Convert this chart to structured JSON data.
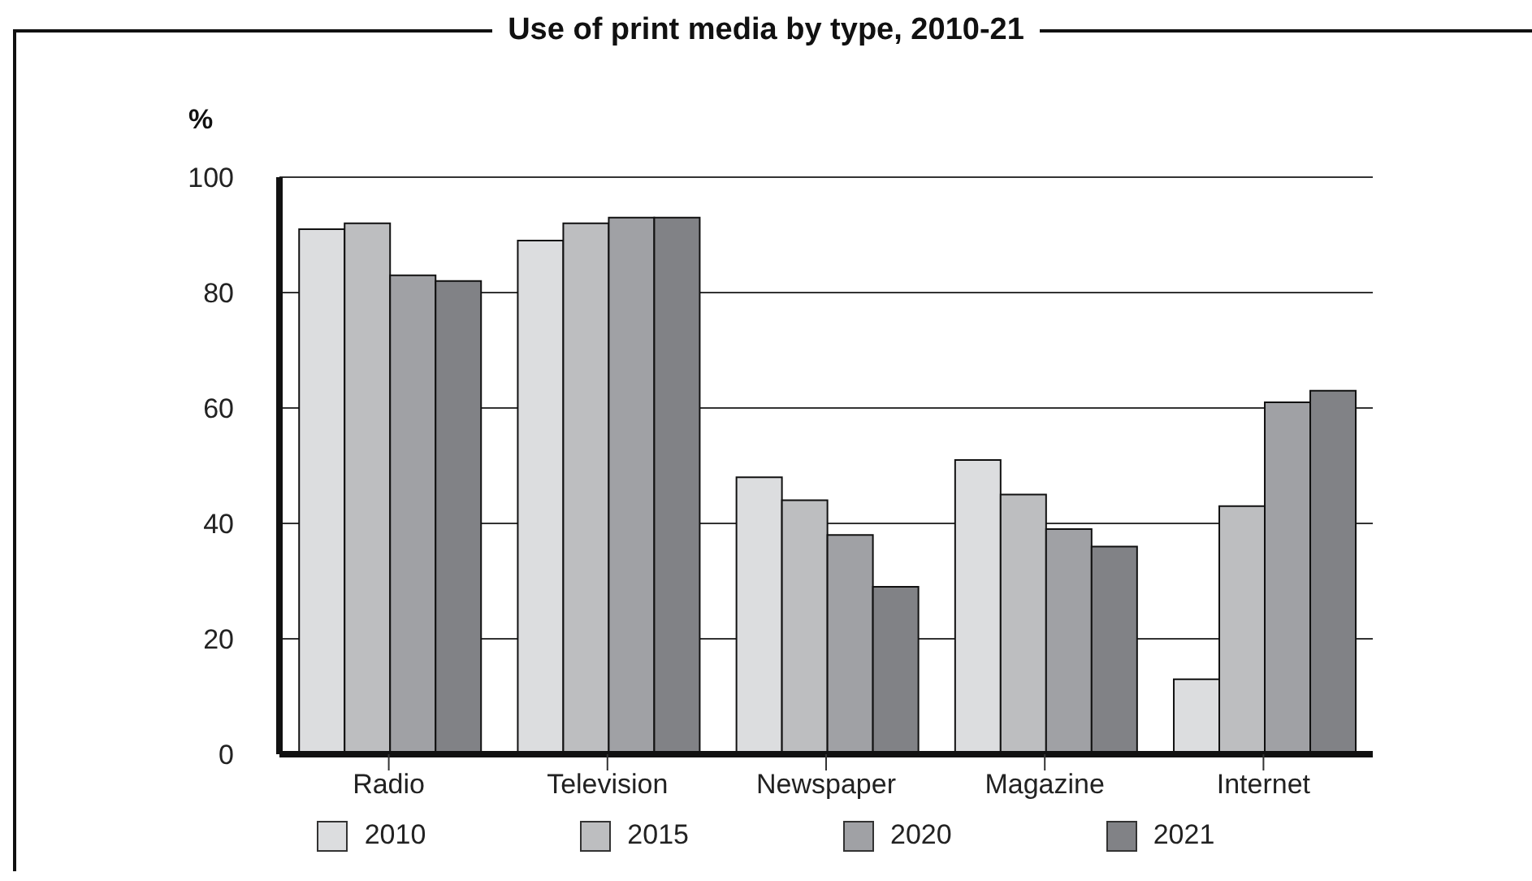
{
  "chart_data": {
    "type": "bar",
    "title": "Use of print media by type, 2010-21",
    "ylabel": "%",
    "categories": [
      "Radio",
      "Television",
      "Newspaper",
      "Magazine",
      "Internet"
    ],
    "series": [
      {
        "name": "2010",
        "color": "#dcdddf",
        "values": [
          91,
          89,
          48,
          51,
          13
        ]
      },
      {
        "name": "2015",
        "color": "#bdbec0",
        "values": [
          92,
          92,
          44,
          45,
          43
        ]
      },
      {
        "name": "2020",
        "color": "#a0a1a5",
        "values": [
          83,
          93,
          38,
          39,
          61
        ]
      },
      {
        "name": "2021",
        "color": "#818286",
        "values": [
          82,
          93,
          29,
          36,
          63
        ]
      }
    ],
    "ylim": [
      0,
      100
    ],
    "yticks": [
      0,
      20,
      40,
      60,
      80,
      100
    ],
    "grid": "y",
    "legend": "bottom"
  }
}
